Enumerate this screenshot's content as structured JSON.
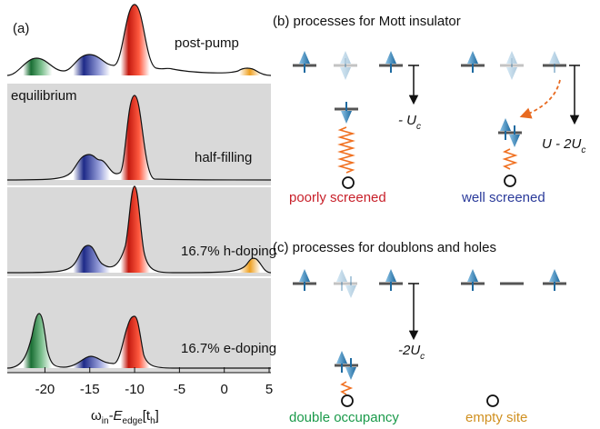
{
  "panel_a": {
    "label": "(a)",
    "equilibrium_label": "equilibrium",
    "spectra_labels": [
      "post-pump",
      "half-filling",
      "16.7% h-doping",
      "16.7% e-doping"
    ],
    "xlim": [
      -24.2,
      5.2
    ],
    "xticks": [
      -20,
      -15,
      -10,
      -5,
      0,
      5
    ],
    "x_label": {
      "omega": "ω",
      "omega_sub": "in",
      "edge": "-E",
      "edge_sub": "edge",
      "unit_open": "[t",
      "unit_sub": "h",
      "unit_close": "]"
    }
  },
  "panel_b": {
    "title": "(b) processes for Mott insulator",
    "energy_left": {
      "main": "- U",
      "sub": "c"
    },
    "energy_right": {
      "main": "U - 2U",
      "sub": "c"
    },
    "label_left": "poorly screened",
    "label_right": "well screened"
  },
  "panel_c": {
    "title": "(c) processes for doublons and holes",
    "energy": {
      "main": "-2U",
      "sub": "c"
    },
    "label_left": "double occupancy",
    "label_right": "empty site"
  }
}
